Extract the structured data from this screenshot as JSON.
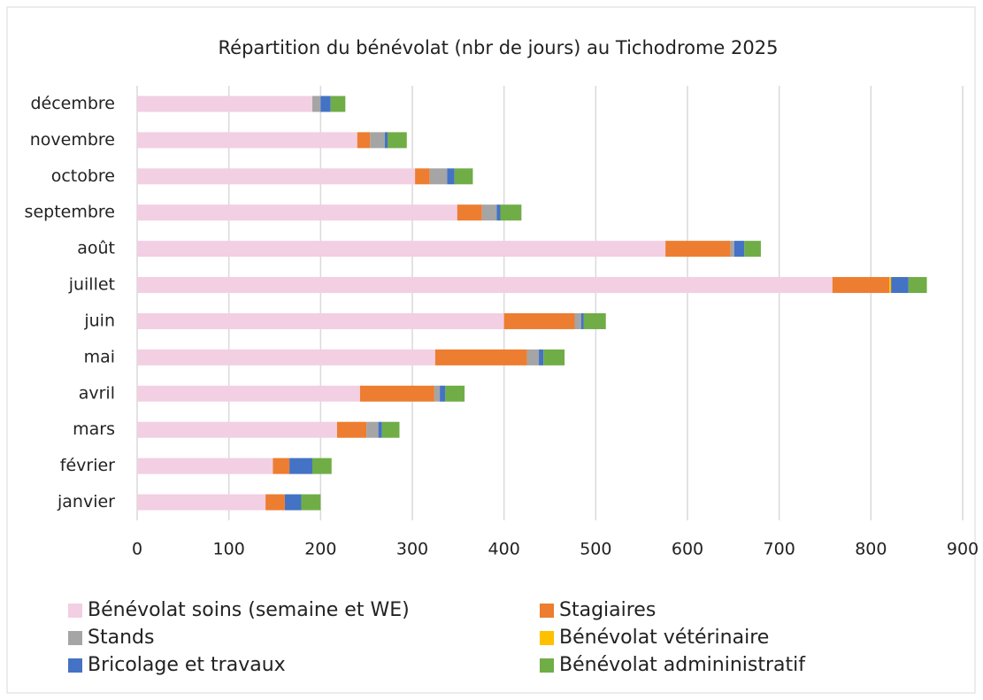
{
  "chart_data": {
    "type": "bar",
    "orientation": "horizontal",
    "stacked": true,
    "title": "Répartition du bénévolat (nbr de jours) au Tichodrome 2025",
    "categories": [
      "janvier",
      "février",
      "mars",
      "avril",
      "mai",
      "juin",
      "juillet",
      "août",
      "septembre",
      "octobre",
      "novembre",
      "décembre"
    ],
    "series": [
      {
        "name": "Bénévolat soins (semaine et WE)",
        "color": "#f2cfe2",
        "values": [
          140,
          148,
          218,
          243,
          325,
          400,
          758,
          576,
          349,
          303,
          240,
          191
        ]
      },
      {
        "name": "Stagiaires",
        "color": "#ed7d31",
        "values": [
          21,
          18,
          32,
          81,
          100,
          77,
          62,
          71,
          27,
          16,
          14,
          0
        ]
      },
      {
        "name": "Stands",
        "color": "#a5a5a5",
        "values": [
          0,
          0,
          13,
          6,
          13,
          7,
          0,
          4,
          16,
          19,
          16,
          9
        ]
      },
      {
        "name": "Bénévolat vétérinaire",
        "color": "#ffc000",
        "values": [
          0,
          0,
          0,
          0,
          0,
          0,
          2,
          0,
          0,
          0,
          0,
          0
        ]
      },
      {
        "name": "Bricolage et travaux",
        "color": "#4472c4",
        "values": [
          18,
          25,
          4,
          6,
          5,
          3,
          19,
          11,
          4,
          8,
          3,
          11
        ]
      },
      {
        "name": "Bénévolat admininistratif",
        "color": "#70ad47",
        "values": [
          21,
          21,
          19,
          21,
          23,
          24,
          20,
          18,
          23,
          20,
          21,
          16
        ]
      }
    ],
    "xlim": [
      0,
      900
    ],
    "xticks": [
      0,
      100,
      200,
      300,
      400,
      500,
      600,
      700,
      800,
      900
    ],
    "grid": true,
    "legend": "bottom"
  }
}
